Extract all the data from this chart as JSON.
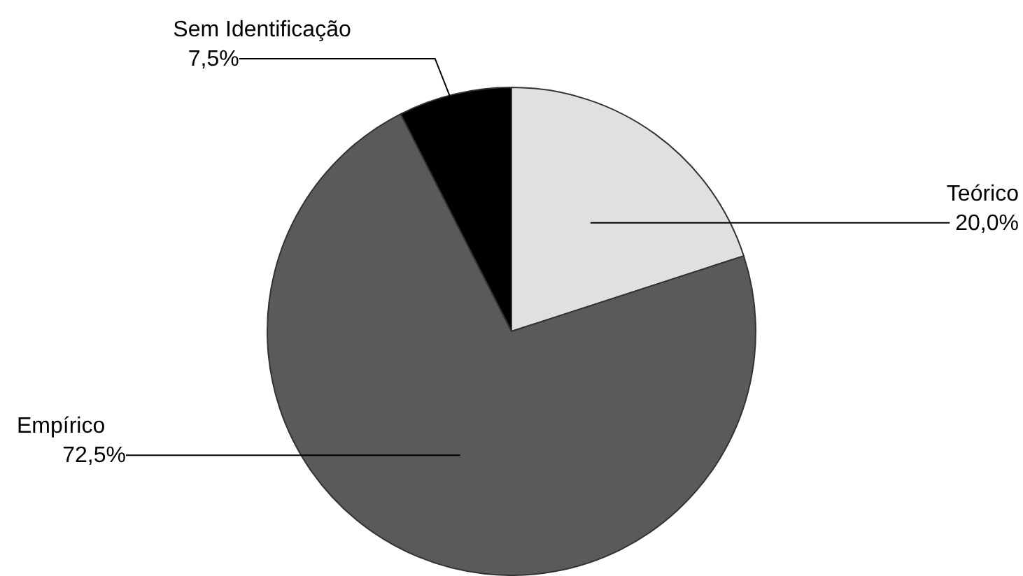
{
  "chart_data": {
    "type": "pie",
    "categories": [
      "Teórico",
      "Empírico",
      "Sem Identificação"
    ],
    "values": [
      20.0,
      72.5,
      7.5
    ],
    "value_labels": [
      "20,0%",
      "72,5%",
      "7,5%"
    ],
    "colors": [
      "#e0e0e0",
      "#5a5a5a",
      "#000000"
    ],
    "legend": false
  }
}
